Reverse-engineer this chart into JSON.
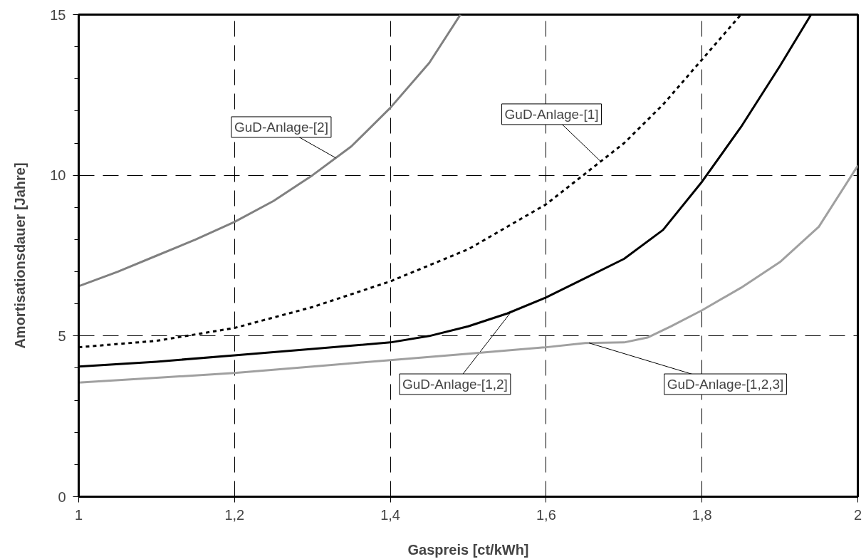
{
  "chart_data": {
    "type": "line",
    "xlabel": "Gaspreis [ct/kWh]",
    "ylabel": "Amortisationsdauer [Jahre]",
    "xlim": [
      1,
      2
    ],
    "ylim": [
      0,
      15
    ],
    "xticks": [
      1,
      {
        "value": 1.2,
        "label": "1,2"
      },
      {
        "value": 1.4,
        "label": "1,4"
      },
      {
        "value": 1.6,
        "label": "1,6"
      },
      {
        "value": 1.8,
        "label": "1,8"
      },
      2
    ],
    "yticks": [
      0,
      5,
      10,
      15
    ],
    "grid": true,
    "marker": "none",
    "series": [
      {
        "name": "GuD-Anlage-[2]",
        "color": "#808080",
        "line_style": "solid",
        "x": [
          1.0,
          1.05,
          1.1,
          1.15,
          1.2,
          1.25,
          1.3,
          1.35,
          1.4,
          1.45,
          1.49
        ],
        "values": [
          6.55,
          7.0,
          7.5,
          8.0,
          8.55,
          9.2,
          10.0,
          10.9,
          12.1,
          13.5,
          15.0
        ]
      },
      {
        "name": "GuD-Anlage-[1]",
        "color": "#000000",
        "line_style": "dotted",
        "x": [
          1.0,
          1.1,
          1.2,
          1.3,
          1.4,
          1.5,
          1.6,
          1.7,
          1.75,
          1.8,
          1.85
        ],
        "values": [
          4.65,
          4.85,
          5.25,
          5.9,
          6.7,
          7.7,
          9.1,
          11.0,
          12.2,
          13.6,
          15.0
        ]
      },
      {
        "name": "GuD-Anlage-[1,2]",
        "color": "#000000",
        "line_style": "solid",
        "x": [
          1.0,
          1.1,
          1.2,
          1.3,
          1.4,
          1.45,
          1.5,
          1.55,
          1.6,
          1.65,
          1.7,
          1.75,
          1.8,
          1.85,
          1.9,
          1.94
        ],
        "values": [
          4.05,
          4.2,
          4.4,
          4.6,
          4.8,
          5.0,
          5.3,
          5.7,
          6.2,
          6.8,
          7.4,
          8.3,
          9.8,
          11.5,
          13.4,
          15.0
        ]
      },
      {
        "name": "GuD-Anlage-[1,2,3]",
        "color": "#a0a0a0",
        "line_style": "solid",
        "x": [
          1.0,
          1.1,
          1.2,
          1.3,
          1.4,
          1.5,
          1.6,
          1.65,
          1.7,
          1.73,
          1.76,
          1.8,
          1.85,
          1.9,
          1.95,
          2.0
        ],
        "values": [
          3.55,
          3.7,
          3.85,
          4.05,
          4.25,
          4.45,
          4.65,
          4.78,
          4.8,
          4.95,
          5.3,
          5.8,
          6.5,
          7.3,
          8.4,
          10.3
        ]
      }
    ]
  }
}
